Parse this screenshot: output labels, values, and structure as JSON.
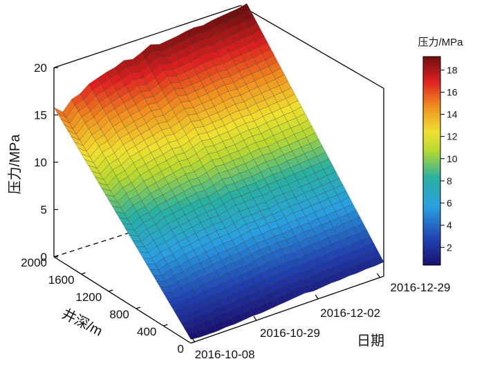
{
  "chart_data": {
    "type": "surface3d",
    "zlabel": "压力/MPa",
    "ylabel": "井深/m",
    "xlabel": "日期",
    "zticks": [
      "0",
      "5",
      "10",
      "15",
      "20"
    ],
    "zlim": [
      0,
      20
    ],
    "yticks": [
      "0",
      "400",
      "800",
      "1200",
      "1600",
      "2000"
    ],
    "ylim": [
      0,
      2000
    ],
    "xticks": [
      "2016-10-08",
      "2016-10-29",
      "2016-12-02",
      "2016-12-29"
    ],
    "colorbar": {
      "title": "压力/MPa",
      "ticks": [
        "2",
        "4",
        "6",
        "8",
        "10",
        "12",
        "14",
        "16",
        "18"
      ],
      "range": [
        0.4,
        19.2
      ]
    },
    "depths_m": [
      0,
      2000
    ],
    "surface_pressure_MPa": [
      0.4,
      0.3,
      0.3,
      0.3,
      0.4,
      0.4,
      0.5,
      0.6,
      0.6,
      0.7,
      0.8,
      0.9,
      1.0,
      1.1,
      1.0,
      1.1,
      1.2,
      1.2,
      1.3,
      1.3,
      1.4,
      1.4,
      1.5
    ],
    "bottom_pressure_MPa": [
      15.8,
      15.0,
      16.0,
      16.3,
      17.0,
      17.3,
      17.6,
      17.8,
      18.2,
      18.0,
      18.4,
      18.9,
      18.6,
      18.7,
      18.8,
      19.0,
      19.1,
      19.0,
      19.2,
      19.3,
      19.4,
      19.5,
      19.7
    ]
  }
}
